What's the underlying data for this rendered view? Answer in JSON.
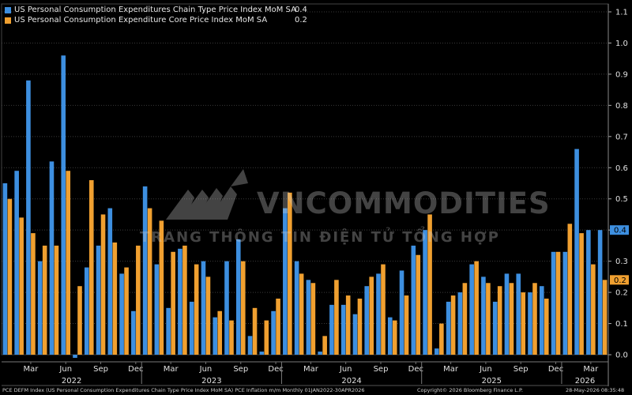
{
  "legend": [
    {
      "name": "US Personal Consumption Expenditures Chain Type Price Index MoM SA",
      "last_value": "0.4",
      "color": "#3d8fe0"
    },
    {
      "name": "US Personal Consumption Expenditure Core Price Index MoM SA",
      "last_value": "0.2",
      "color": "#f0a030"
    }
  ],
  "watermark": {
    "title": "VNCOMMODITIES",
    "subtitle": "TRANG THÔNG TIN ĐIỆN TỬ TỔNG HỢP"
  },
  "footer": {
    "left": "PCE DEFM Index (US Personal Consumption Expenditures Chain Type Price Index MoM SA) PCE Inflation m/m Monthly 01JAN2022-30APR2026",
    "center": "Copyright© 2026 Bloomberg Finance L.P.",
    "right": "28-May-2026 08:35:48"
  },
  "chart_data": {
    "type": "bar",
    "ylim": [
      0,
      1.1
    ],
    "yticks": [
      "0.0",
      "0.1",
      "0.2",
      "0.3",
      "0.4",
      "0.5",
      "0.6",
      "0.7",
      "0.8",
      "0.9",
      "1.0",
      "1.1"
    ],
    "grid": true,
    "legend_position": "top-left",
    "categories": [
      "2022-01",
      "2022-02",
      "2022-03",
      "2022-04",
      "2022-05",
      "2022-06",
      "2022-07",
      "2022-08",
      "2022-09",
      "2022-10",
      "2022-11",
      "2022-12",
      "2023-01",
      "2023-02",
      "2023-03",
      "2023-04",
      "2023-05",
      "2023-06",
      "2023-07",
      "2023-08",
      "2023-09",
      "2023-10",
      "2023-11",
      "2023-12",
      "2024-01",
      "2024-02",
      "2024-03",
      "2024-04",
      "2024-05",
      "2024-06",
      "2024-07",
      "2024-08",
      "2024-09",
      "2024-10",
      "2024-11",
      "2024-12",
      "2025-01",
      "2025-02",
      "2025-03",
      "2025-04",
      "2025-05",
      "2025-06",
      "2025-07",
      "2025-08",
      "2025-09",
      "2025-10",
      "2025-11",
      "2025-12",
      "2026-01",
      "2026-02",
      "2026-03",
      "2026-04"
    ],
    "month_labels": [
      {
        "index": 2,
        "label": "Mar"
      },
      {
        "index": 5,
        "label": "Jun"
      },
      {
        "index": 8,
        "label": "Sep"
      },
      {
        "index": 11,
        "label": "Dec"
      },
      {
        "index": 14,
        "label": "Mar"
      },
      {
        "index": 17,
        "label": "Jun"
      },
      {
        "index": 20,
        "label": "Sep"
      },
      {
        "index": 23,
        "label": "Dec"
      },
      {
        "index": 26,
        "label": "Mar"
      },
      {
        "index": 29,
        "label": "Jun"
      },
      {
        "index": 32,
        "label": "Sep"
      },
      {
        "index": 35,
        "label": "Dec"
      },
      {
        "index": 38,
        "label": "Mar"
      },
      {
        "index": 41,
        "label": "Jun"
      },
      {
        "index": 44,
        "label": "Sep"
      },
      {
        "index": 47,
        "label": "Dec"
      },
      {
        "index": 50,
        "label": "Mar"
      }
    ],
    "year_labels": [
      {
        "start": 0,
        "end": 11,
        "label": "2022"
      },
      {
        "start": 12,
        "end": 23,
        "label": "2023"
      },
      {
        "start": 24,
        "end": 35,
        "label": "2024"
      },
      {
        "start": 36,
        "end": 47,
        "label": "2025"
      },
      {
        "start": 48,
        "end": 51,
        "label": "2026"
      }
    ],
    "series": [
      {
        "name": "US Personal Consumption Expenditures Chain Type Price Index MoM SA",
        "color": "#3d8fe0",
        "values": [
          0.55,
          0.59,
          0.88,
          0.3,
          0.62,
          0.96,
          -0.01,
          0.28,
          0.35,
          0.47,
          0.26,
          0.14,
          0.54,
          0.29,
          0.15,
          0.34,
          0.17,
          0.3,
          0.12,
          0.3,
          0.37,
          0.06,
          0.01,
          0.14,
          0.47,
          0.3,
          0.24,
          0.01,
          0.16,
          0.16,
          0.13,
          0.22,
          0.26,
          0.12,
          0.27,
          0.35,
          0.4,
          0.02,
          0.17,
          0.2,
          0.29,
          0.25,
          0.17,
          0.26,
          0.26,
          0.2,
          0.22,
          0.33,
          0.33,
          0.66,
          0.4,
          0.4
        ]
      },
      {
        "name": "US Personal Consumption Expenditure Core Price Index MoM SA",
        "color": "#f0a030",
        "values": [
          0.5,
          0.44,
          0.39,
          0.35,
          0.35,
          0.59,
          0.22,
          0.56,
          0.45,
          0.36,
          0.28,
          0.35,
          0.47,
          0.43,
          0.33,
          0.35,
          0.29,
          0.25,
          0.14,
          0.11,
          0.3,
          0.15,
          0.11,
          0.18,
          0.52,
          0.26,
          0.23,
          0.06,
          0.24,
          0.19,
          0.18,
          0.25,
          0.29,
          0.11,
          0.19,
          0.32,
          0.45,
          0.1,
          0.19,
          0.23,
          0.3,
          0.23,
          0.22,
          0.23,
          0.2,
          0.23,
          0.18,
          0.33,
          0.42,
          0.39,
          0.29,
          0.24
        ]
      }
    ]
  }
}
